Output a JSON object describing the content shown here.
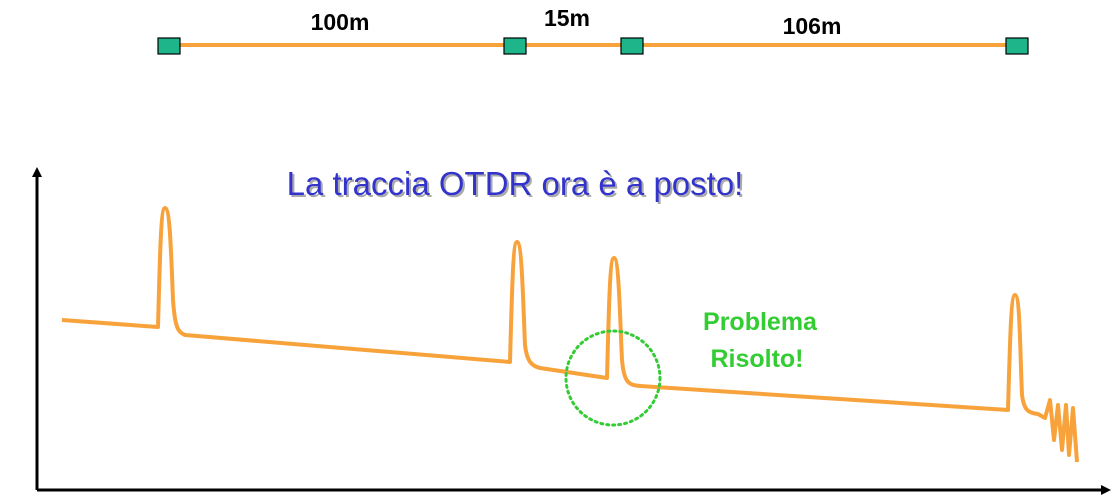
{
  "segments": [
    "100m",
    "15m",
    "106m"
  ],
  "title": "La traccia OTDR ora è a posto!",
  "annotation": [
    "Problema",
    "Risolto!"
  ]
}
